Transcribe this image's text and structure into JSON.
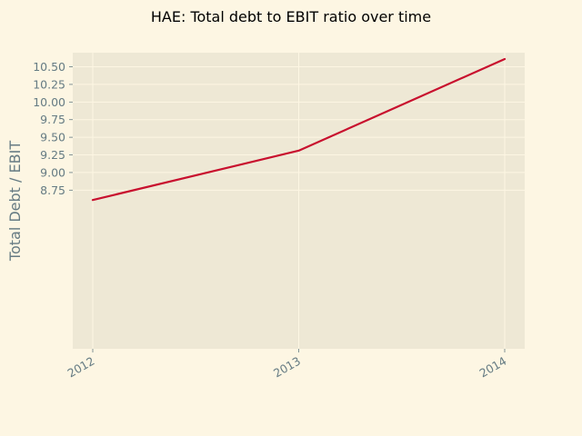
{
  "chart_data": {
    "type": "line",
    "title": "HAE: Total debt to EBIT ratio over time",
    "xlabel": "",
    "ylabel": "Total Debt / EBIT",
    "x": [
      "2012",
      "2013",
      "2014"
    ],
    "series": [
      {
        "values": [
          8.61,
          9.31,
          10.61
        ],
        "color": "#c8102e"
      }
    ],
    "ylim": [
      6.499,
      10.7
    ],
    "yticks": [
      8.75,
      9.0,
      9.25,
      9.5,
      9.75,
      10.0,
      10.25,
      10.5
    ],
    "ytick_labels": [
      "8.75",
      "9.00",
      "9.25",
      "9.50",
      "9.75",
      "10.00",
      "10.25",
      "10.50"
    ],
    "grid": true,
    "legend": "none"
  },
  "colors": {
    "figure_background": "#fdf6e3",
    "plot_background": "#eee8d5",
    "grid": "#fdf6e3",
    "tick_text": "#657b83",
    "title_text": "#000000",
    "line": "#c8102e"
  }
}
